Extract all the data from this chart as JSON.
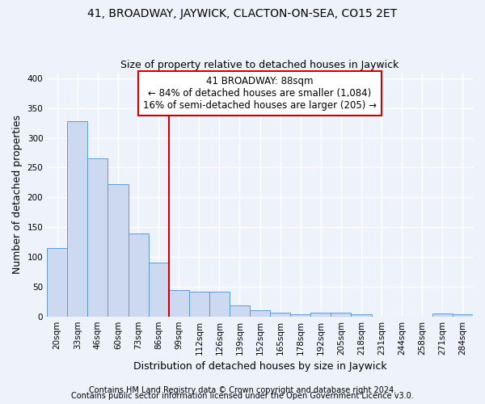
{
  "title": "41, BROADWAY, JAYWICK, CLACTON-ON-SEA, CO15 2ET",
  "subtitle": "Size of property relative to detached houses in Jaywick",
  "xlabel": "Distribution of detached houses by size in Jaywick",
  "ylabel": "Number of detached properties",
  "categories": [
    "20sqm",
    "33sqm",
    "46sqm",
    "60sqm",
    "73sqm",
    "86sqm",
    "99sqm",
    "112sqm",
    "126sqm",
    "139sqm",
    "152sqm",
    "165sqm",
    "178sqm",
    "192sqm",
    "205sqm",
    "218sqm",
    "231sqm",
    "244sqm",
    "258sqm",
    "271sqm",
    "284sqm"
  ],
  "values": [
    115,
    328,
    265,
    222,
    140,
    91,
    45,
    42,
    42,
    19,
    10,
    7,
    3,
    7,
    7,
    4,
    0,
    0,
    0,
    5,
    4
  ],
  "bar_color": "#ccd9f0",
  "bar_edge_color": "#5b9bd5",
  "vline_x": 5.5,
  "vline_color": "#cc0000",
  "annotation_line1": "41 BROADWAY: 88sqm",
  "annotation_line2": "← 84% of detached houses are smaller (1,084)",
  "annotation_line3": "16% of semi-detached houses are larger (205) →",
  "annotation_box_color": "white",
  "annotation_box_edge": "#cc0000",
  "ylim": [
    0,
    410
  ],
  "yticks": [
    0,
    50,
    100,
    150,
    200,
    250,
    300,
    350,
    400
  ],
  "footnote1": "Contains HM Land Registry data © Crown copyright and database right 2024.",
  "footnote2": "Contains public sector information licensed under the Open Government Licence v3.0.",
  "background_color": "#eef2fb",
  "grid_color": "#ffffff",
  "title_fontsize": 10,
  "subtitle_fontsize": 9,
  "axis_label_fontsize": 9,
  "tick_fontsize": 7.5,
  "annotation_fontsize": 8.5,
  "footnote_fontsize": 7
}
